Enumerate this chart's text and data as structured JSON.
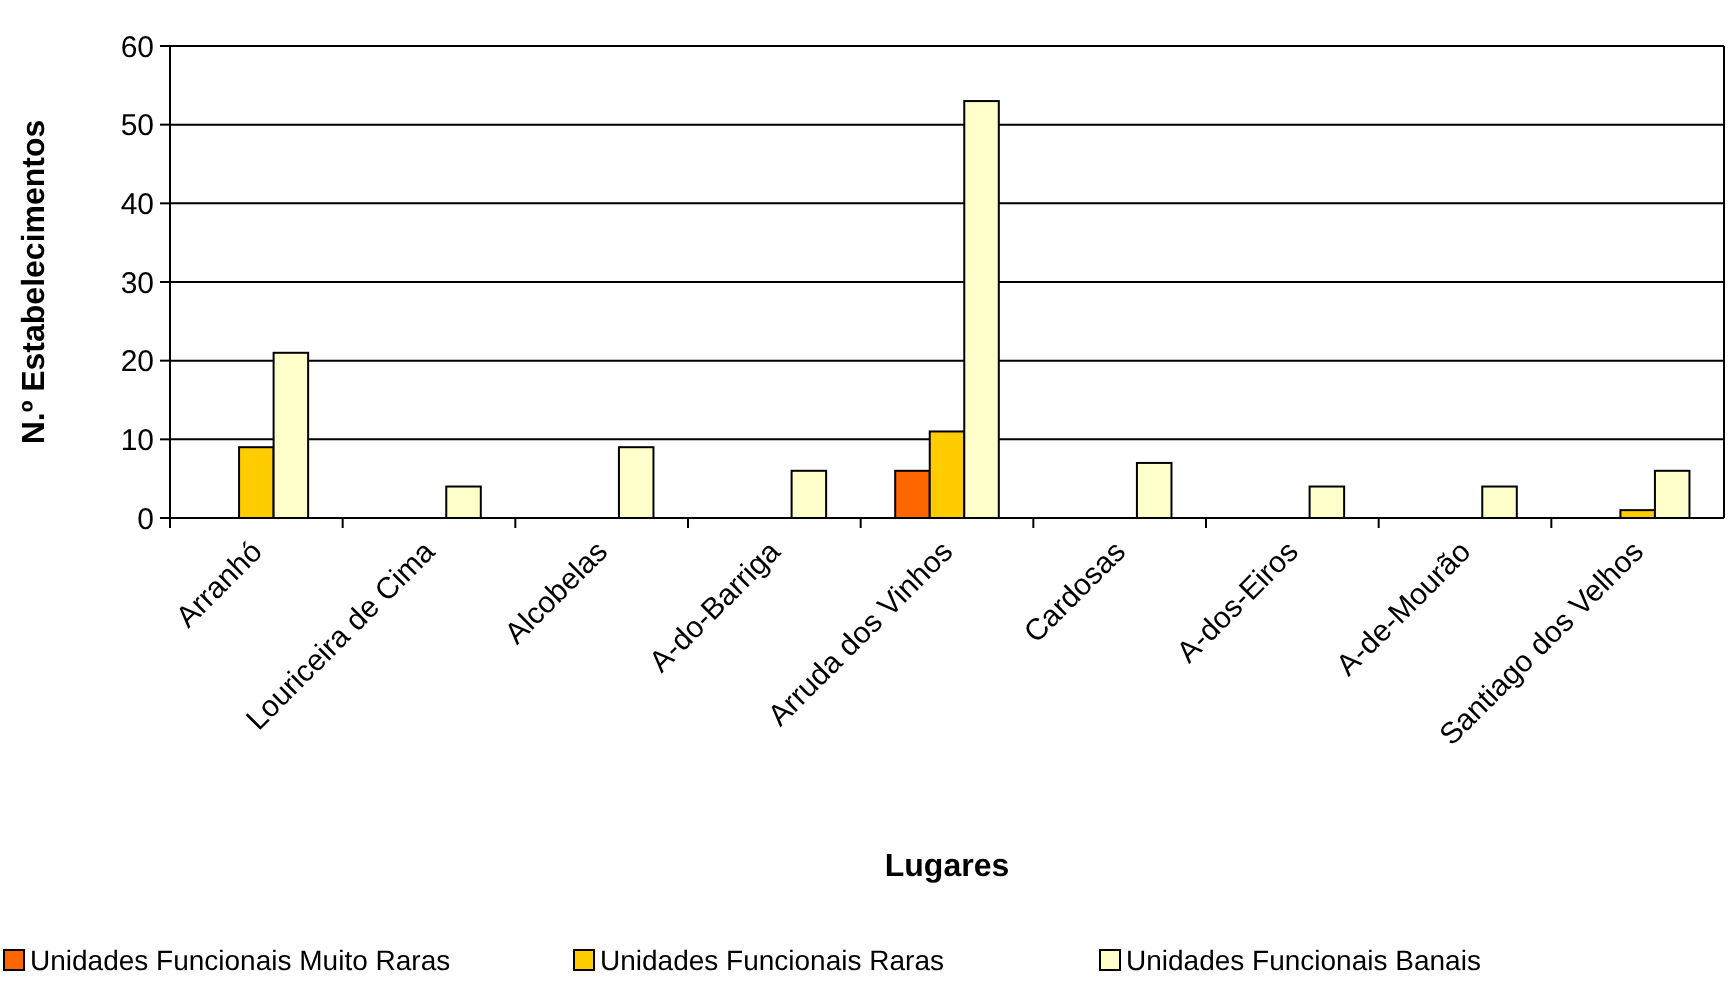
{
  "chart_data": {
    "type": "bar",
    "xlabel": "Lugares",
    "ylabel": "N.º Estabelecimentos",
    "categories": [
      "Arranhó",
      "Louriceira de Cima",
      "Alcobelas",
      "A-do-Barriga",
      "Arruda dos Vinhos",
      "Cardosas",
      "A-dos-Eiros",
      "A-de-Mourão",
      "Santiago dos Velhos"
    ],
    "series": [
      {
        "name": "Unidades Funcionais Muito Raras",
        "color": "#ff6600",
        "values": [
          0,
          0,
          0,
          0,
          6,
          0,
          0,
          0,
          0
        ]
      },
      {
        "name": "Unidades Funcionais Raras",
        "color": "#ffcc00",
        "values": [
          9,
          0,
          0,
          0,
          11,
          0,
          0,
          0,
          1
        ]
      },
      {
        "name": "Unidades Funcionais Banais",
        "color": "#ffffcc",
        "values": [
          21,
          4,
          9,
          6,
          53,
          7,
          4,
          4,
          6
        ]
      }
    ],
    "ylim": [
      0,
      60
    ],
    "yticks": [
      0,
      10,
      20,
      30,
      40,
      50,
      60
    ],
    "grid": "y",
    "legend": "bottom"
  }
}
